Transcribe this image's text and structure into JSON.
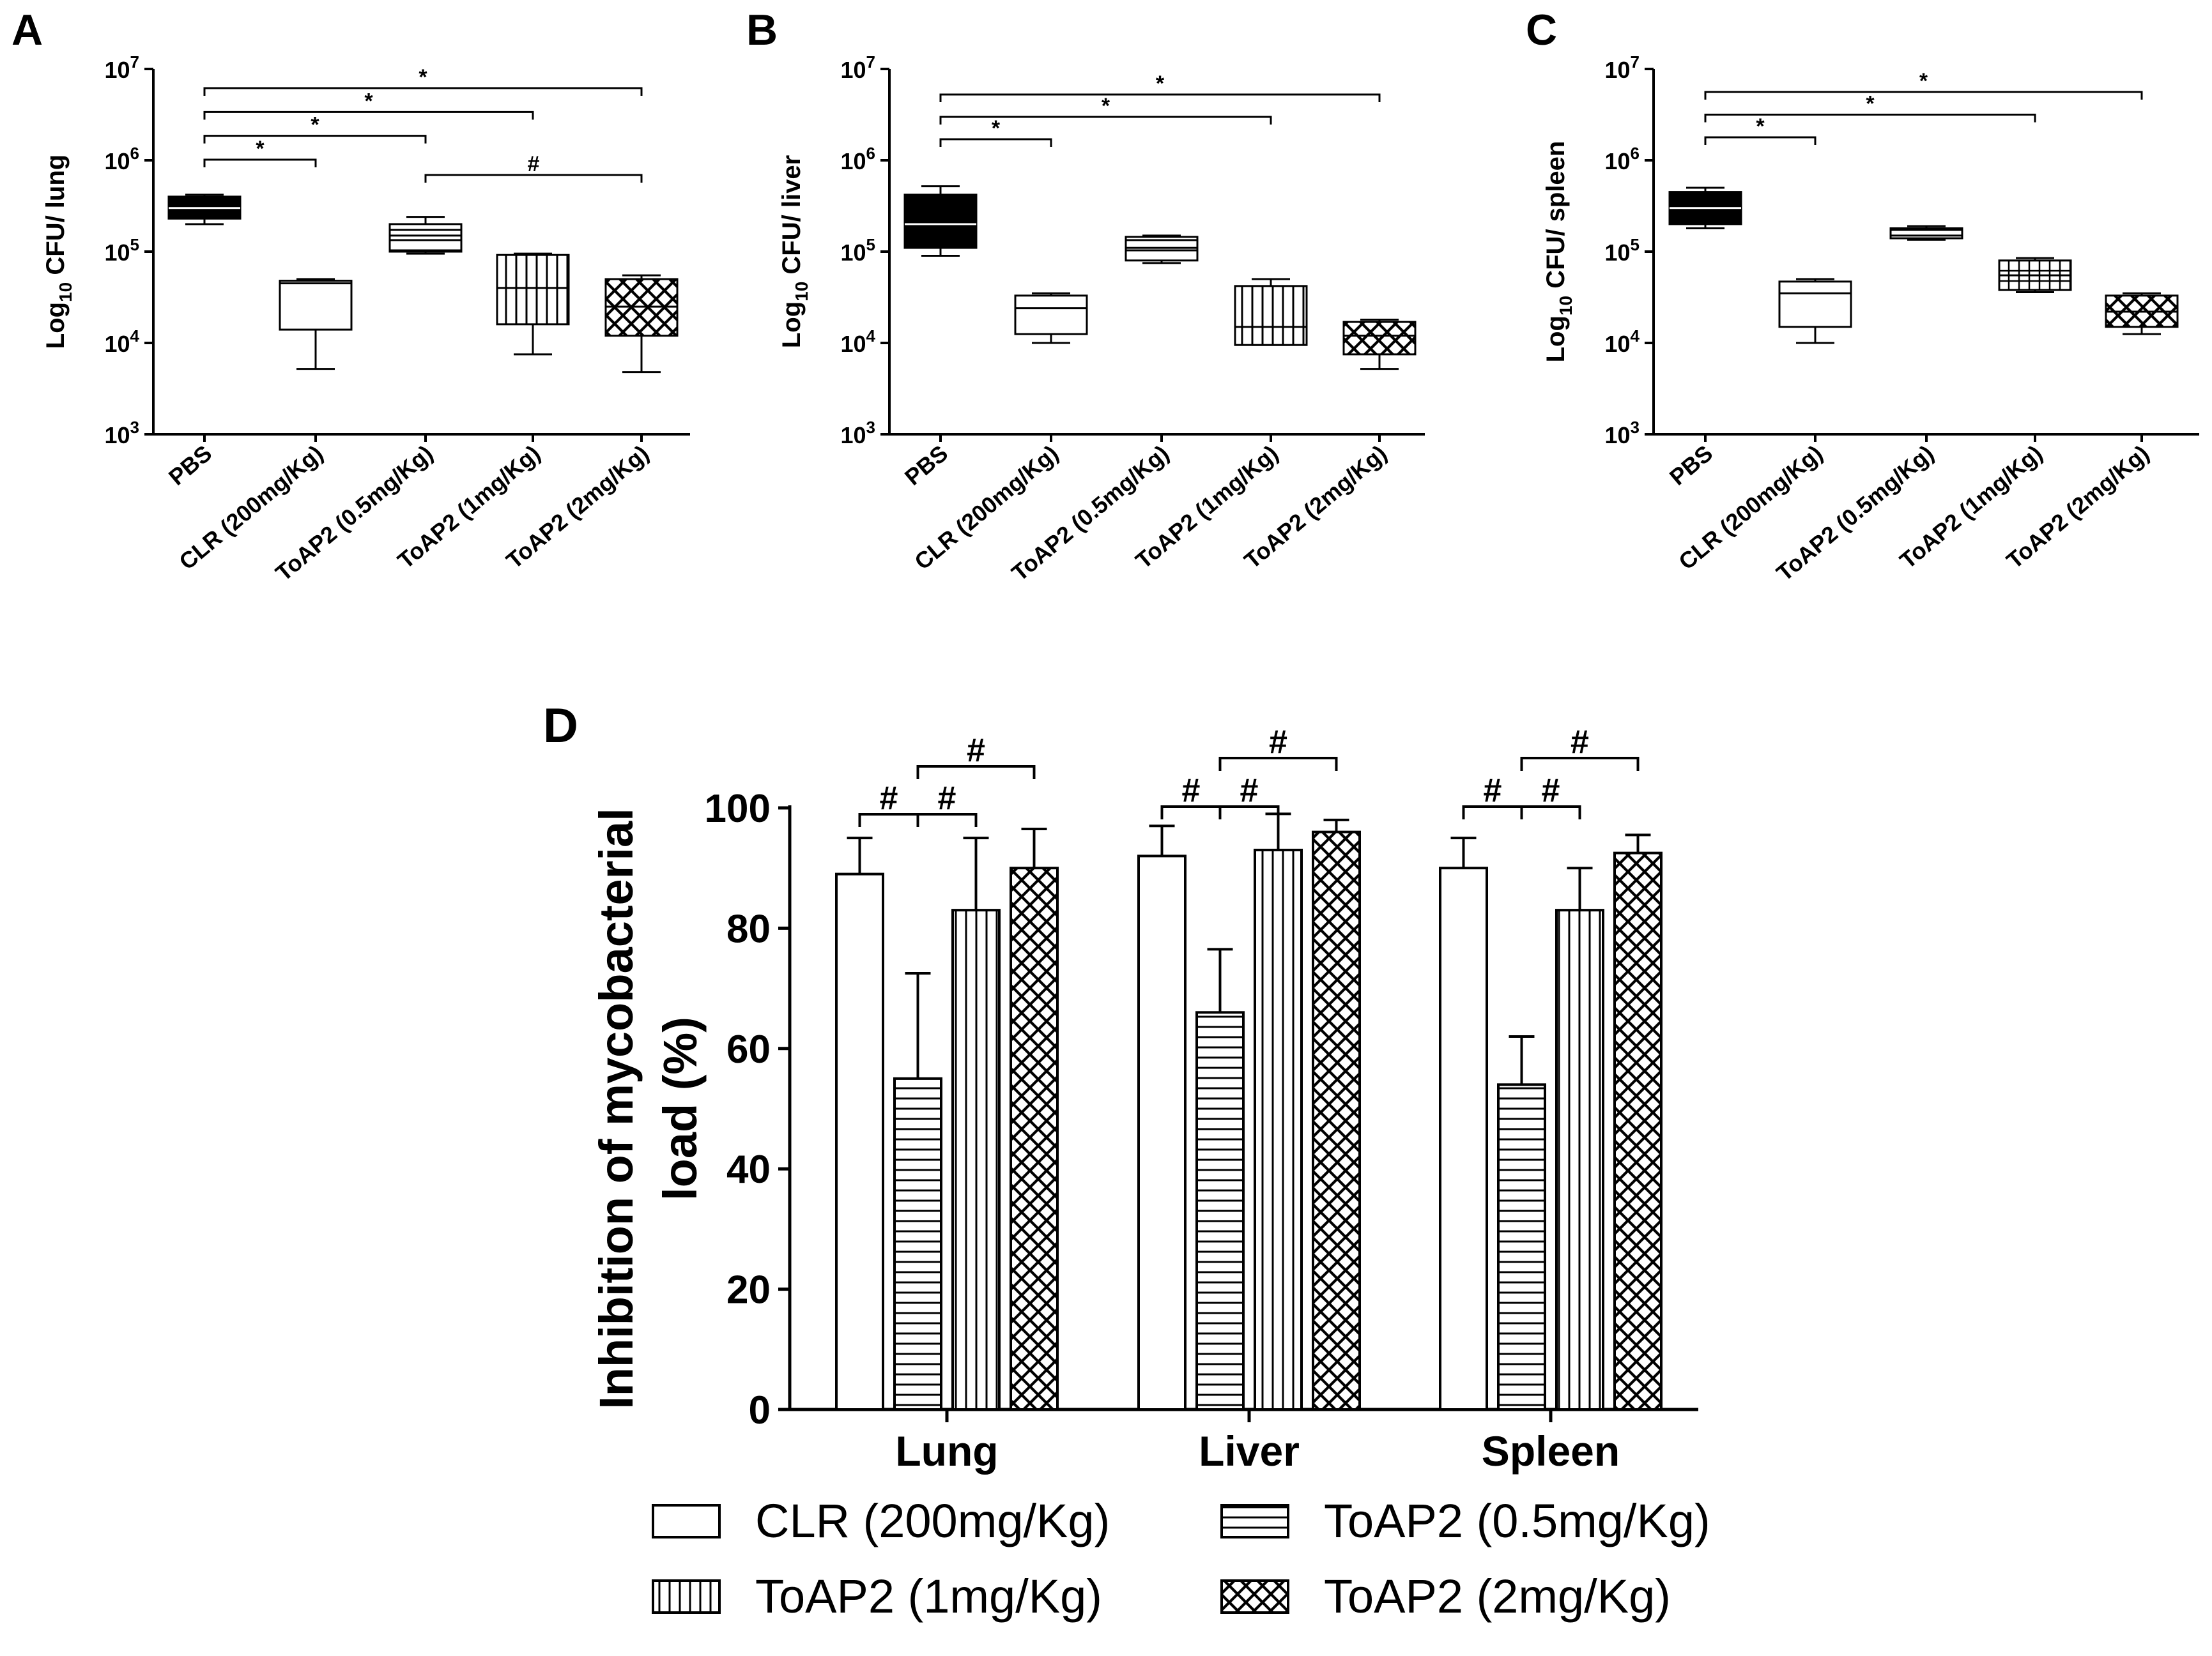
{
  "figure": {
    "panel_labels": [
      "A",
      "B",
      "C",
      "D"
    ],
    "tick_labels_log": [
      {
        "base": "10",
        "exp": "3"
      },
      {
        "base": "10",
        "exp": "4"
      },
      {
        "base": "10",
        "exp": "5"
      },
      {
        "base": "10",
        "exp": "6"
      },
      {
        "base": "10",
        "exp": "7"
      }
    ],
    "categories": [
      "PBS",
      "CLR (200mg/Kg)",
      "ToAP2 (0.5mg/Kg)",
      "ToAP2 (1mg/Kg)",
      "ToAP2 (2mg/Kg)"
    ],
    "sig_star": "*",
    "sig_hash": "#"
  },
  "chart_data": [
    {
      "panel": "A",
      "type": "box",
      "ylabel": {
        "prefix": "Log",
        "sub": "10",
        "suffix": " CFU/ lung"
      },
      "yscale": "log",
      "ylim": [
        1000,
        10000000
      ],
      "boxes": [
        {
          "category": "PBS",
          "fill": "solid",
          "min": 200000,
          "q1": 230000,
          "median": 300000,
          "q3": 400000,
          "max": 420000
        },
        {
          "category": "CLR (200mg/Kg)",
          "fill": "none",
          "min": 5200,
          "q1": 14000,
          "median": 45000,
          "q3": 48000,
          "max": 50000
        },
        {
          "category": "ToAP2 (0.5mg/Kg)",
          "fill": "hlines",
          "min": 95000,
          "q1": 100000,
          "median": 150000,
          "q3": 200000,
          "max": 240000
        },
        {
          "category": "ToAP2 (1mg/Kg)",
          "fill": "vlines",
          "min": 7500,
          "q1": 16000,
          "median": 40000,
          "q3": 92000,
          "max": 95000
        },
        {
          "category": "ToAP2 (2mg/Kg)",
          "fill": "cross",
          "min": 4800,
          "q1": 12000,
          "median": 25000,
          "q3": 50000,
          "max": 55000
        }
      ],
      "comparisons": [
        {
          "from": 0,
          "to": 1,
          "label": "*"
        },
        {
          "from": 0,
          "to": 2,
          "label": "*"
        },
        {
          "from": 0,
          "to": 3,
          "label": "*"
        },
        {
          "from": 0,
          "to": 4,
          "label": "*"
        },
        {
          "from": 2,
          "to": 4,
          "label": "#"
        }
      ]
    },
    {
      "panel": "B",
      "type": "box",
      "ylabel": {
        "prefix": "Log",
        "sub": "10",
        "suffix": " CFU/ liver"
      },
      "yscale": "log",
      "ylim": [
        1000,
        10000000
      ],
      "boxes": [
        {
          "category": "PBS",
          "fill": "solid",
          "min": 90000,
          "q1": 110000,
          "median": 200000,
          "q3": 420000,
          "max": 520000
        },
        {
          "category": "CLR (200mg/Kg)",
          "fill": "none",
          "min": 10000,
          "q1": 12500,
          "median": 24000,
          "q3": 33000,
          "max": 35000
        },
        {
          "category": "ToAP2 (0.5mg/Kg)",
          "fill": "hlines",
          "min": 75000,
          "q1": 80000,
          "median": 110000,
          "q3": 145000,
          "max": 150000
        },
        {
          "category": "ToAP2 (1mg/Kg)",
          "fill": "vlines",
          "min": 9500,
          "q1": 9500,
          "median": 15000,
          "q3": 42000,
          "max": 50000
        },
        {
          "category": "ToAP2 (2mg/Kg)",
          "fill": "cross",
          "min": 5200,
          "q1": 7500,
          "median": 12000,
          "q3": 17000,
          "max": 18000
        }
      ],
      "comparisons": [
        {
          "from": 0,
          "to": 1,
          "label": "*"
        },
        {
          "from": 0,
          "to": 3,
          "label": "*"
        },
        {
          "from": 0,
          "to": 4,
          "label": "*"
        }
      ]
    },
    {
      "panel": "C",
      "type": "box",
      "ylabel": {
        "prefix": "Log",
        "sub": "10",
        "suffix": " CFU/ spleen"
      },
      "yscale": "log",
      "ylim": [
        1000,
        10000000
      ],
      "boxes": [
        {
          "category": "PBS",
          "fill": "solid",
          "min": 180000,
          "q1": 200000,
          "median": 300000,
          "q3": 450000,
          "max": 500000
        },
        {
          "category": "CLR (200mg/Kg)",
          "fill": "none",
          "min": 10000,
          "q1": 15000,
          "median": 35000,
          "q3": 47000,
          "max": 50000
        },
        {
          "category": "ToAP2 (0.5mg/Kg)",
          "fill": "hlines",
          "min": 135000,
          "q1": 140000,
          "median": 150000,
          "q3": 180000,
          "max": 190000
        },
        {
          "category": "ToAP2 (1mg/Kg)",
          "fill": "grid",
          "min": 36000,
          "q1": 38000,
          "median": 55000,
          "q3": 80000,
          "max": 85000
        },
        {
          "category": "ToAP2 (2mg/Kg)",
          "fill": "cross",
          "min": 12500,
          "q1": 15000,
          "median": 22000,
          "q3": 33000,
          "max": 35000
        }
      ],
      "comparisons": [
        {
          "from": 0,
          "to": 1,
          "label": "*"
        },
        {
          "from": 0,
          "to": 3,
          "label": "*"
        },
        {
          "from": 0,
          "to": 4,
          "label": "*"
        }
      ]
    },
    {
      "panel": "D",
      "type": "bar",
      "ylabel_lines": [
        "Inhibition of mycobacterial",
        "load (%)"
      ],
      "ylim": [
        0,
        100
      ],
      "yticks": [
        "0",
        "20",
        "40",
        "60",
        "80",
        "100"
      ],
      "groups": [
        "Lung",
        "Liver",
        "Spleen"
      ],
      "series": [
        {
          "name": "CLR (200mg/Kg)",
          "fill": "none",
          "values": [
            89,
            92,
            90
          ],
          "errors": [
            6,
            5,
            5
          ]
        },
        {
          "name": "ToAP2 (0.5mg/Kg)",
          "fill": "hlines",
          "values": [
            55,
            66,
            54
          ],
          "errors": [
            17.5,
            10.5,
            8
          ]
        },
        {
          "name": "ToAP2 (1mg/Kg)",
          "fill": "vlines",
          "values": [
            83,
            93,
            83
          ],
          "errors": [
            12,
            6,
            7
          ]
        },
        {
          "name": "ToAP2 (2mg/Kg)",
          "fill": "cross",
          "values": [
            90,
            96,
            92.5
          ],
          "errors": [
            6.5,
            2,
            3
          ]
        }
      ],
      "comparisons": [
        {
          "group": 0,
          "from": 0,
          "to": 1,
          "label": "#"
        },
        {
          "group": 0,
          "from": 1,
          "to": 2,
          "label": "#"
        },
        {
          "group": 0,
          "from": 1,
          "to": 3,
          "label": "#"
        },
        {
          "group": 1,
          "from": 0,
          "to": 1,
          "label": "#"
        },
        {
          "group": 1,
          "from": 1,
          "to": 2,
          "label": "#"
        },
        {
          "group": 1,
          "from": 1,
          "to": 3,
          "label": "#"
        },
        {
          "group": 2,
          "from": 0,
          "to": 1,
          "label": "#"
        },
        {
          "group": 2,
          "from": 1,
          "to": 2,
          "label": "#"
        },
        {
          "group": 2,
          "from": 1,
          "to": 3,
          "label": "#"
        }
      ],
      "legend": [
        "CLR (200mg/Kg)",
        "ToAP2 (0.5mg/Kg)",
        "ToAP2 (1mg/Kg)",
        "ToAP2 (2mg/Kg)"
      ]
    }
  ]
}
